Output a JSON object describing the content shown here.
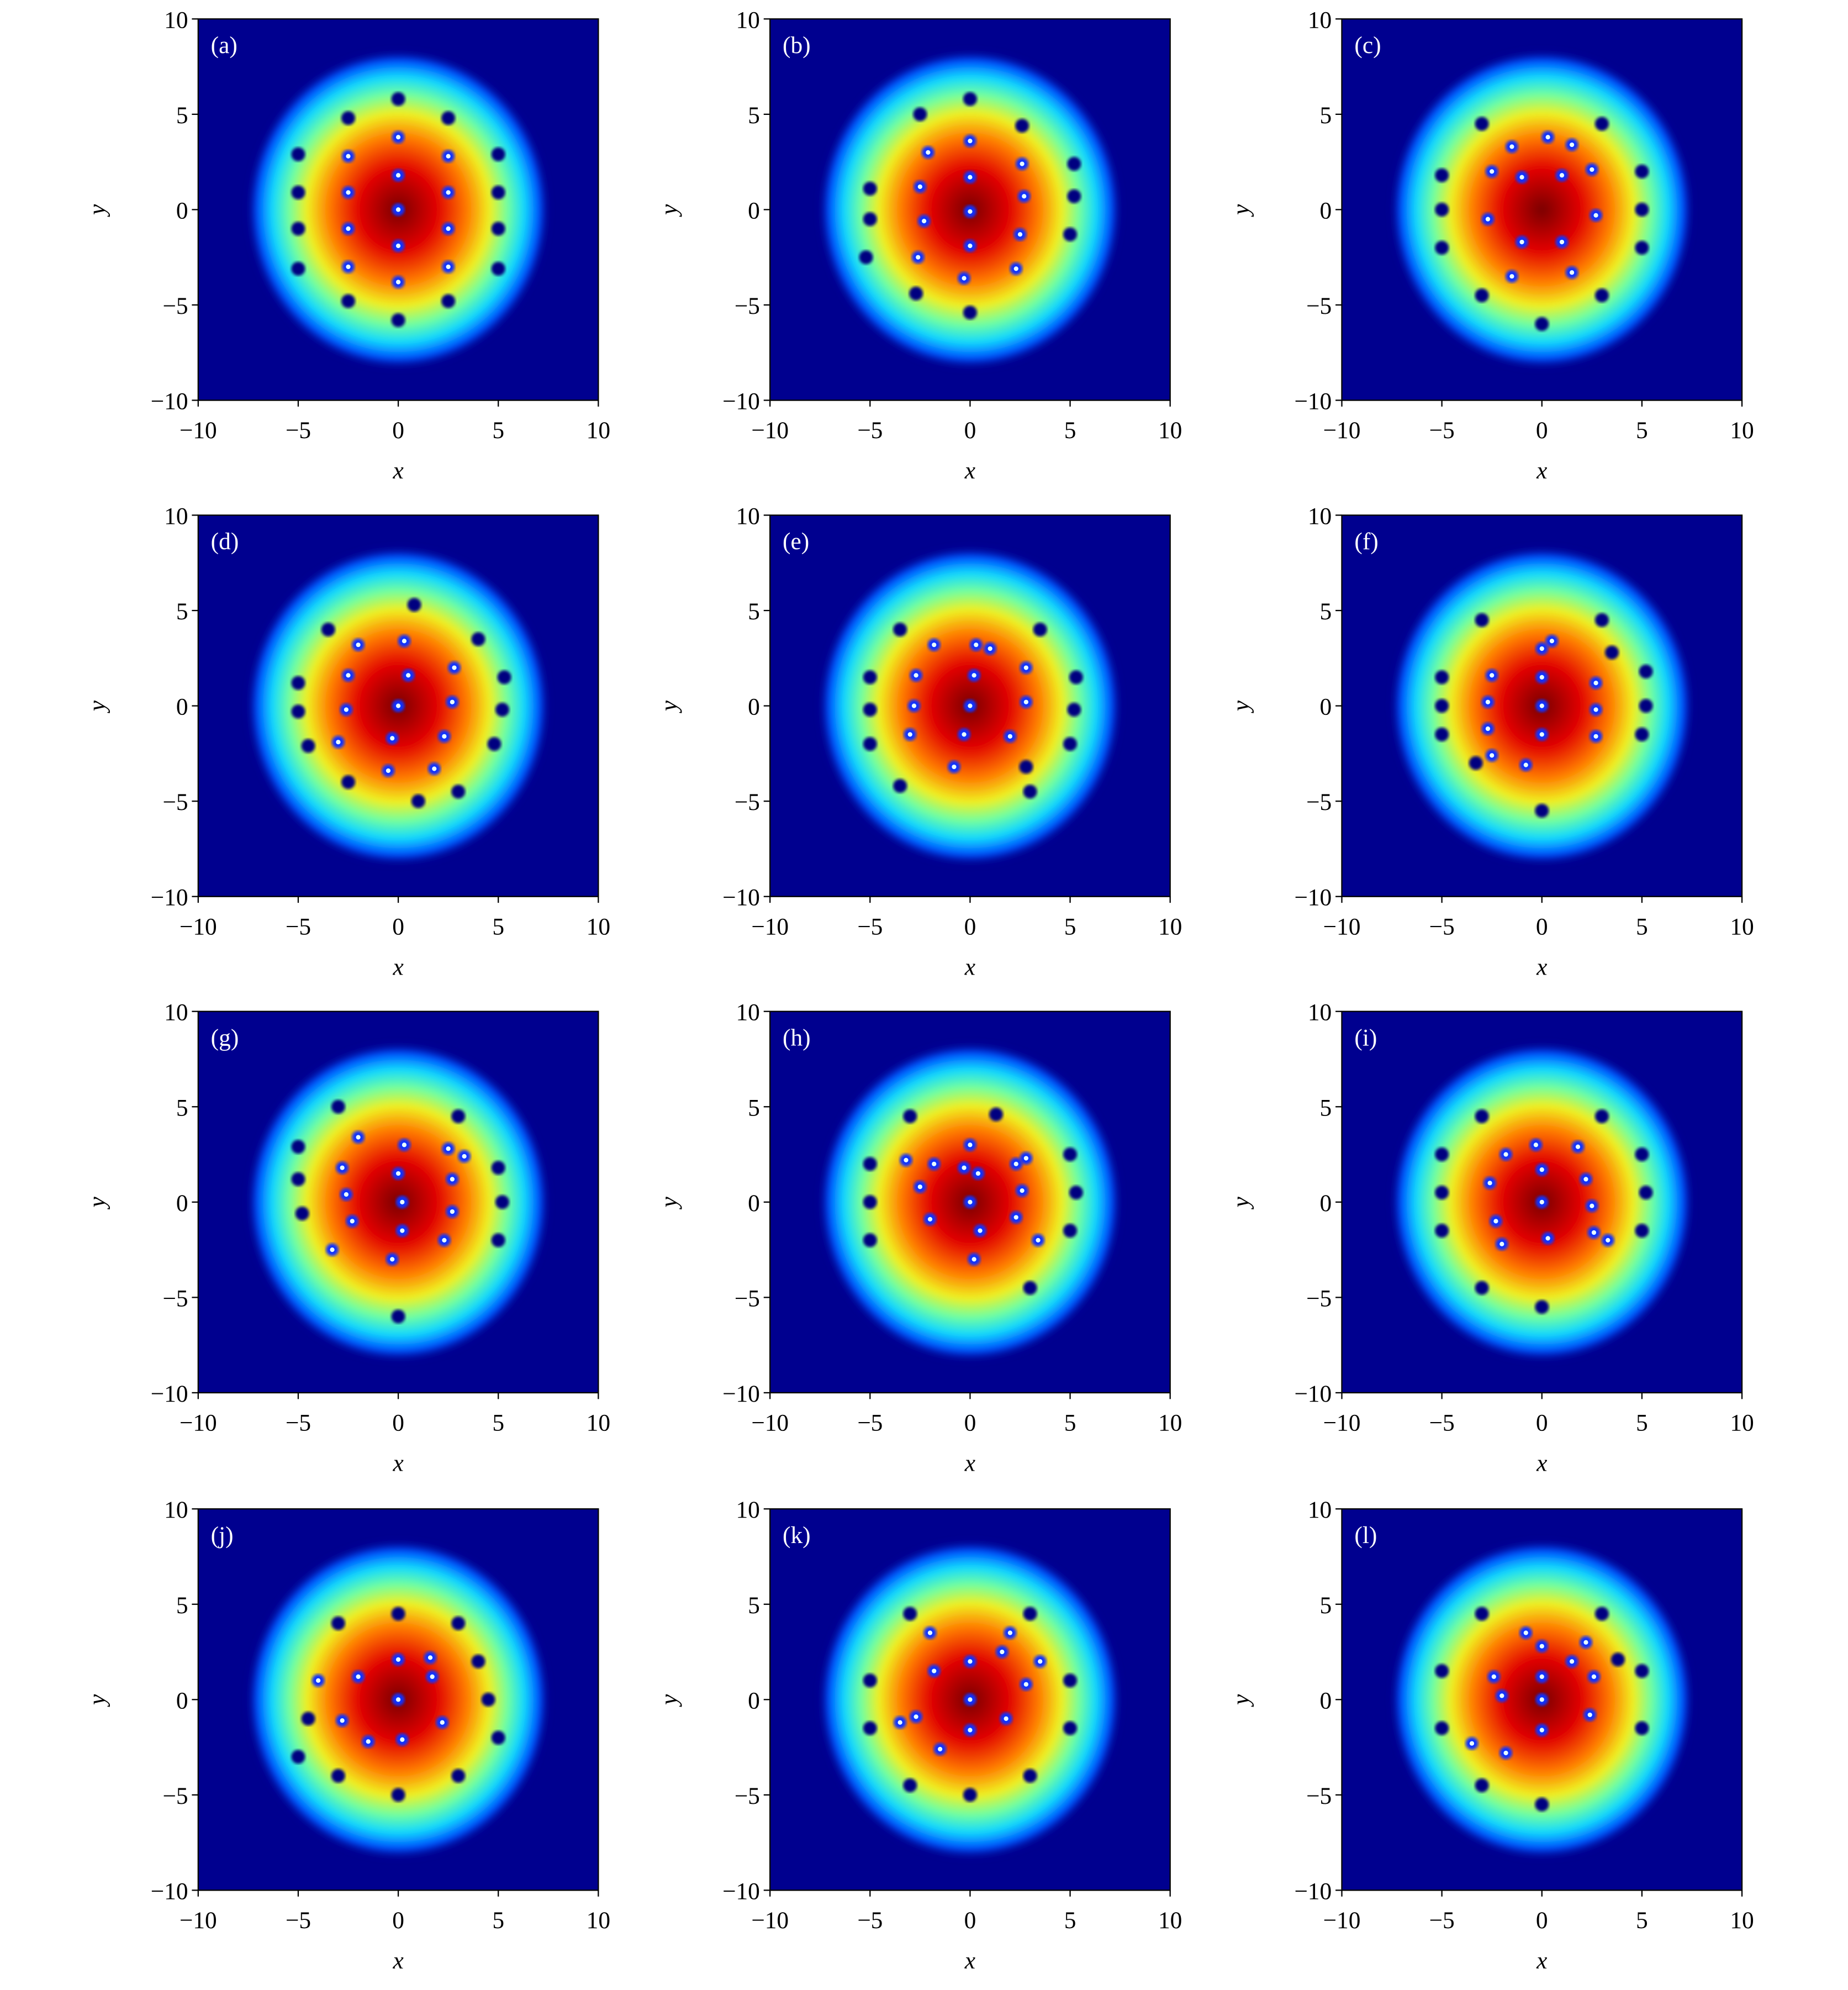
{
  "chart_data": [
    {
      "type": "heatmap",
      "label": "(a)",
      "xlabel": "x",
      "ylabel": "y",
      "xlim": [
        -10,
        10
      ],
      "ylim": [
        -10,
        10
      ],
      "xticks": [
        {
          "value": -10,
          "label": "−10"
        },
        {
          "value": -5,
          "label": "−5"
        },
        0,
        5,
        10
      ],
      "yticks": [
        {
          "value": -10,
          "label": "−10"
        },
        {
          "value": -5,
          "label": "−5"
        },
        0,
        5,
        10
      ],
      "x": [
        -2.5,
        -2.5,
        -2.5,
        -2.5,
        0,
        0,
        0,
        0,
        0,
        2.5,
        2.5,
        2.5,
        2.5,
        -5,
        -5,
        -5,
        -5,
        5,
        5,
        5,
        5,
        0,
        0,
        -2.5,
        2.5,
        -2.5,
        2.5
      ],
      "y": [
        2.8,
        0.9,
        -1,
        -3,
        3.8,
        1.8,
        0,
        -1.9,
        -3.8,
        2.8,
        0.9,
        -1,
        -3,
        2.9,
        0.9,
        -1,
        -3.1,
        2.9,
        0.9,
        -1,
        -3.1,
        5.8,
        -5.8,
        4.8,
        4.8,
        -4.8,
        -4.8
      ]
    },
    {
      "type": "heatmap",
      "label": "(b)",
      "xlabel": "x",
      "ylabel": "y",
      "xlim": [
        -10,
        10
      ],
      "ylim": [
        -10,
        10
      ],
      "xticks": [
        {
          "value": -10,
          "label": "−10"
        },
        {
          "value": -5,
          "label": "−5"
        },
        0,
        5,
        10
      ],
      "yticks": [
        {
          "value": -10,
          "label": "−10"
        },
        {
          "value": -5,
          "label": "−5"
        },
        0,
        5,
        10
      ],
      "x": [
        -2.1,
        0,
        -2.5,
        0,
        2.6,
        2.7,
        0,
        -2.3,
        0,
        2.5,
        -0.3,
        -2.6,
        2.3,
        -5,
        -5,
        -5.2,
        5.2,
        5.2,
        5,
        0,
        -2.7,
        2.6,
        -2.5,
        0
      ],
      "y": [
        3,
        3.6,
        1.2,
        1.7,
        2.4,
        0.7,
        -0.1,
        -0.6,
        -1.9,
        -1.3,
        -3.6,
        -2.5,
        -3.1,
        1.1,
        -0.5,
        -2.5,
        2.4,
        0.7,
        -1.3,
        -5.4,
        -4.4,
        4.4,
        5,
        5.8
      ]
    },
    {
      "type": "heatmap",
      "label": "(c)",
      "xlabel": "x",
      "ylabel": "y",
      "xlim": [
        -10,
        10
      ],
      "ylim": [
        -10,
        10
      ],
      "xticks": [
        {
          "value": -10,
          "label": "−10"
        },
        {
          "value": -5,
          "label": "−5"
        },
        0,
        5,
        10
      ],
      "yticks": [
        {
          "value": -10,
          "label": "−10"
        },
        {
          "value": -5,
          "label": "−5"
        },
        0,
        5,
        10
      ],
      "x": [
        -1.5,
        0.3,
        1.5,
        -2.5,
        -1,
        1,
        2.5,
        -2.7,
        2.7,
        -1,
        1,
        -1.5,
        1.5,
        -5,
        -5,
        -5,
        5,
        5,
        5,
        0,
        -3,
        3,
        -3,
        3
      ],
      "y": [
        3.3,
        3.8,
        3.4,
        2,
        1.7,
        1.8,
        2.1,
        -0.5,
        -0.3,
        -1.7,
        -1.7,
        -3.5,
        -3.3,
        1.8,
        0,
        -2,
        2,
        0,
        -2,
        -6,
        -4.5,
        4.5,
        4.5,
        -4.5
      ]
    },
    {
      "type": "heatmap",
      "label": "(d)",
      "xlabel": "x",
      "ylabel": "y",
      "xlim": [
        -10,
        10
      ],
      "ylim": [
        -10,
        10
      ],
      "xticks": [
        {
          "value": -10,
          "label": "−10"
        },
        {
          "value": -5,
          "label": "−5"
        },
        0,
        5,
        10
      ],
      "yticks": [
        {
          "value": -10,
          "label": "−10"
        },
        {
          "value": -5,
          "label": "−5"
        },
        0,
        5,
        10
      ],
      "x": [
        -2,
        -2.5,
        -2.6,
        -3,
        0.3,
        0.5,
        0,
        -0.3,
        -0.5,
        2.8,
        2.7,
        2.3,
        1.8,
        0.8,
        1,
        -5,
        -5,
        -4.5,
        5.3,
        5.2,
        4.8,
        -3.5,
        4,
        -2.5,
        3
      ],
      "y": [
        3.2,
        1.6,
        -0.2,
        -1.9,
        3.4,
        1.6,
        0,
        -1.7,
        -3.4,
        2,
        0.2,
        -1.6,
        -3.3,
        5.3,
        -5,
        1.2,
        -0.3,
        -2.1,
        1.5,
        -0.2,
        -2,
        4,
        3.5,
        -4,
        -4.5
      ]
    },
    {
      "type": "heatmap",
      "label": "(e)",
      "xlabel": "x",
      "ylabel": "y",
      "xlim": [
        -10,
        10
      ],
      "ylim": [
        -10,
        10
      ],
      "xticks": [
        {
          "value": -10,
          "label": "−10"
        },
        {
          "value": -5,
          "label": "−5"
        },
        0,
        5,
        10
      ],
      "yticks": [
        {
          "value": -10,
          "label": "−10"
        },
        {
          "value": -5,
          "label": "−5"
        },
        0,
        5,
        10
      ],
      "x": [
        -1.8,
        -2.7,
        -2.8,
        -3,
        0.3,
        0.2,
        0,
        -0.3,
        -0.8,
        2.8,
        2.8,
        2,
        1,
        2.8,
        -5,
        -5,
        -5,
        5.3,
        5.2,
        5,
        -3.5,
        3.5,
        -3.5,
        3
      ],
      "y": [
        3.2,
        1.6,
        0,
        -1.5,
        3.2,
        1.6,
        0,
        -1.5,
        -3.2,
        2,
        0.2,
        -1.6,
        3,
        -3.2,
        1.5,
        -0.2,
        -2,
        1.5,
        -0.2,
        -2,
        4,
        4,
        -4.2,
        -4.5
      ]
    },
    {
      "type": "heatmap",
      "label": "(f)",
      "xlabel": "x",
      "ylabel": "y",
      "xlim": [
        -10,
        10
      ],
      "ylim": [
        -10,
        10
      ],
      "xticks": [
        {
          "value": -10,
          "label": "−10"
        },
        {
          "value": -5,
          "label": "−5"
        },
        0,
        5,
        10
      ],
      "yticks": [
        {
          "value": -10,
          "label": "−10"
        },
        {
          "value": -5,
          "label": "−5"
        },
        0,
        5,
        10
      ],
      "x": [
        -2.5,
        -2.7,
        -2.7,
        -2.5,
        -3.3,
        0,
        0,
        0,
        0,
        -0.8,
        0.5,
        2.7,
        2.7,
        2.7,
        3.5,
        -5,
        -5,
        -5,
        5.2,
        5.2,
        5,
        -3,
        3,
        0
      ],
      "y": [
        1.6,
        0.2,
        -1.2,
        -2.6,
        -3,
        3,
        1.5,
        0,
        -1.5,
        -3.1,
        3.4,
        1.2,
        -0.2,
        -1.6,
        2.8,
        1.5,
        0,
        -1.5,
        1.8,
        0,
        -1.5,
        4.5,
        4.5,
        -5.5
      ]
    },
    {
      "type": "heatmap",
      "label": "(g)",
      "xlabel": "x",
      "ylabel": "y",
      "xlim": [
        -10,
        10
      ],
      "ylim": [
        -10,
        10
      ],
      "xticks": [
        {
          "value": -10,
          "label": "−10"
        },
        {
          "value": -5,
          "label": "−5"
        },
        0,
        5,
        10
      ],
      "yticks": [
        {
          "value": -10,
          "label": "−10"
        },
        {
          "value": -5,
          "label": "−5"
        },
        0,
        5,
        10
      ],
      "x": [
        -2,
        -2.8,
        -2.6,
        -2.3,
        -3.3,
        0.3,
        0,
        0.2,
        0.2,
        -0.3,
        2.5,
        2.7,
        2.7,
        2.3,
        3.3,
        -5,
        -5,
        -4.8,
        5,
        5.2,
        5,
        -3,
        3,
        0
      ],
      "y": [
        3.4,
        1.8,
        0.4,
        -1,
        -2.5,
        3,
        1.5,
        0,
        -1.5,
        -3,
        2.8,
        1.2,
        -0.5,
        -2,
        2.4,
        2.9,
        1.2,
        -0.6,
        1.8,
        0,
        -2,
        5,
        4.5,
        -6
      ]
    },
    {
      "type": "heatmap",
      "label": "(h)",
      "xlabel": "x",
      "ylabel": "y",
      "xlim": [
        -10,
        10
      ],
      "ylim": [
        -10,
        10
      ],
      "xticks": [
        {
          "value": -10,
          "label": "−10"
        },
        {
          "value": -5,
          "label": "−5"
        },
        0,
        5,
        10
      ],
      "yticks": [
        {
          "value": -10,
          "label": "−10"
        },
        {
          "value": -5,
          "label": "−5"
        },
        0,
        5,
        10
      ],
      "x": [
        -3.2,
        -2.5,
        -2,
        -1.8,
        0,
        0.4,
        0,
        0.5,
        0.2,
        -0.3,
        2.3,
        2.6,
        2.3,
        2.8,
        3.4,
        1.3,
        -5,
        -5,
        -5,
        5,
        5.3,
        5,
        -3,
        3
      ],
      "y": [
        2.2,
        0.8,
        -0.9,
        2,
        3,
        1.5,
        0,
        -1.5,
        -3,
        1.8,
        2,
        0.6,
        -0.8,
        2.3,
        -2,
        4.6,
        2,
        0,
        -2,
        2.5,
        0.5,
        -1.5,
        4.5,
        -4.5
      ]
    },
    {
      "type": "heatmap",
      "label": "(i)",
      "xlabel": "x",
      "ylabel": "y",
      "xlim": [
        -10,
        10
      ],
      "ylim": [
        -10,
        10
      ],
      "xticks": [
        {
          "value": -10,
          "label": "−10"
        },
        {
          "value": -5,
          "label": "−5"
        },
        0,
        5,
        10
      ],
      "yticks": [
        {
          "value": -10,
          "label": "−10"
        },
        {
          "value": -5,
          "label": "−5"
        },
        0,
        5,
        10
      ],
      "x": [
        -1.8,
        -2.6,
        -2.3,
        -2,
        -0.3,
        0,
        0,
        0.3,
        1.8,
        2.2,
        2.5,
        2.6,
        3.3,
        -5,
        -5,
        -5,
        5,
        5.2,
        5,
        -3,
        3,
        0,
        -3
      ],
      "y": [
        2.5,
        1,
        -1,
        -2.2,
        3,
        1.7,
        0,
        -1.9,
        2.9,
        1.2,
        -0.2,
        -1.6,
        -2,
        2.5,
        0.5,
        -1.5,
        2.5,
        0.5,
        -1.5,
        4.5,
        4.5,
        -5.5,
        -4.5
      ]
    },
    {
      "type": "heatmap",
      "label": "(j)",
      "xlabel": "x",
      "ylabel": "y",
      "xlim": [
        -10,
        10
      ],
      "ylim": [
        -10,
        10
      ],
      "xticks": [
        {
          "value": -10,
          "label": "−10"
        },
        {
          "value": -5,
          "label": "−5"
        },
        0,
        5,
        10
      ],
      "yticks": [
        {
          "value": -10,
          "label": "−10"
        },
        {
          "value": -5,
          "label": "−5"
        },
        0,
        5,
        10
      ],
      "x": [
        -2,
        0,
        1.6,
        -2.8,
        0,
        2.2,
        -1.5,
        0.2,
        1.7,
        -4,
        -4.5,
        -5,
        4,
        4.5,
        5,
        -3,
        0,
        3,
        -3,
        0,
        3
      ],
      "y": [
        1.2,
        2.1,
        2.2,
        -1.1,
        0,
        -1.2,
        -2.2,
        -2.1,
        1.2,
        1,
        -1,
        -3,
        2,
        0,
        -2,
        4,
        4.5,
        4,
        -4,
        -5,
        -4
      ]
    },
    {
      "type": "heatmap",
      "label": "(k)",
      "xlabel": "x",
      "ylabel": "y",
      "xlim": [
        -10,
        10
      ],
      "ylim": [
        -10,
        10
      ],
      "xticks": [
        {
          "value": -10,
          "label": "−10"
        },
        {
          "value": -5,
          "label": "−5"
        },
        0,
        5,
        10
      ],
      "yticks": [
        {
          "value": -10,
          "label": "−10"
        },
        {
          "value": -5,
          "label": "−5"
        },
        0,
        5,
        10
      ],
      "x": [
        -1.8,
        0,
        1.6,
        -2.7,
        0,
        2.8,
        -1.5,
        0,
        1.8,
        -3.5,
        3.5,
        -2,
        2,
        -5,
        -5,
        5,
        5,
        -3,
        3,
        0,
        -3,
        3
      ],
      "y": [
        1.5,
        2,
        2.5,
        -0.9,
        0,
        0.8,
        -2.6,
        -1.6,
        -1,
        -1.2,
        2,
        3.5,
        3.5,
        1,
        -1.5,
        1,
        -1.5,
        4.5,
        4.5,
        -5,
        -4.5,
        -4
      ]
    },
    {
      "type": "heatmap",
      "label": "(l)",
      "xlabel": "x",
      "ylabel": "y",
      "xlim": [
        -10,
        10
      ],
      "ylim": [
        -10,
        10
      ],
      "xticks": [
        {
          "value": -10,
          "label": "−10"
        },
        {
          "value": -5,
          "label": "−5"
        },
        0,
        5,
        10
      ],
      "yticks": [
        {
          "value": -10,
          "label": "−10"
        },
        {
          "value": -5,
          "label": "−5"
        },
        0,
        5,
        10
      ],
      "x": [
        -2.4,
        -2,
        0,
        0,
        0,
        0,
        2.2,
        2.6,
        2.4,
        -3.5,
        -1.8,
        1.5,
        -0.8,
        3.8,
        -5,
        -5,
        5,
        5,
        -3,
        3,
        0,
        -3
      ],
      "y": [
        1.2,
        0.2,
        2.8,
        1.2,
        0,
        -1.6,
        3,
        1.2,
        -0.8,
        -2.3,
        -2.8,
        2,
        3.5,
        2.1,
        1.5,
        -1.5,
        1.5,
        -1.5,
        4.5,
        4.5,
        -5.5,
        -4.5
      ]
    }
  ]
}
